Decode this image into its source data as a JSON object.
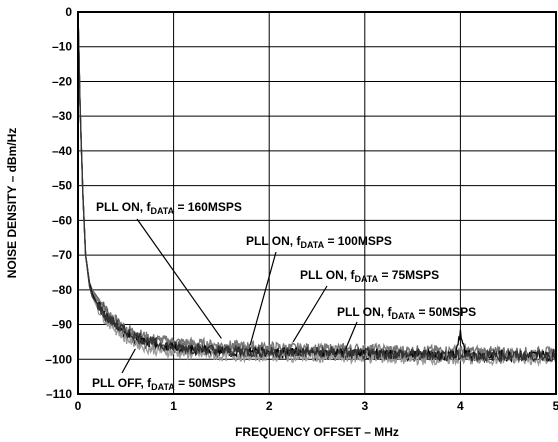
{
  "chart_data": {
    "type": "line",
    "title": "",
    "xlabel": "FREQUENCY OFFSET – MHz",
    "ylabel": "NOISE DENSITY – dBm/Hz",
    "xlim": [
      0,
      5
    ],
    "ylim": [
      -110,
      0
    ],
    "xticks": [
      "0",
      "1",
      "2",
      "3",
      "4",
      "5"
    ],
    "yticks": [
      "0",
      "–10",
      "–20",
      "–30",
      "–40",
      "–50",
      "–60",
      "–70",
      "–80",
      "–90",
      "–100",
      "–110"
    ],
    "grid": true,
    "annotations": [
      {
        "pre": "PLL ON, f",
        "sub": "DATA",
        "post": " = 160MSPS",
        "arrow_to": [
          1.5,
          -94
        ]
      },
      {
        "pre": "PLL ON, f",
        "sub": "DATA",
        "post": " = 100MSPS",
        "arrow_to": [
          1.8,
          -96
        ]
      },
      {
        "pre": "PLL ON, f",
        "sub": "DATA",
        "post": " = 75MSPS",
        "arrow_to": [
          2.25,
          -95
        ]
      },
      {
        "pre": "PLL ON, f",
        "sub": "DATA",
        "post": " = 50MSPS",
        "arrow_to": [
          2.8,
          -97
        ]
      },
      {
        "pre": "PLL OFF, f",
        "sub": "DATA",
        "post": " = 50MSPS",
        "arrow_to": [
          0.6,
          -97
        ]
      }
    ],
    "series": [
      {
        "color": "#555555",
        "x": [
          0,
          0.02,
          0.05,
          0.08,
          0.12,
          0.15,
          0.2,
          0.3,
          0.5,
          0.75,
          1.0,
          1.5,
          2.0,
          2.5,
          3.0,
          3.5,
          4.0,
          4.5,
          5.0
        ],
        "y": [
          0,
          -25,
          -52,
          -70,
          -78,
          -80,
          -82,
          -86,
          -92,
          -95,
          -96,
          -97,
          -97.5,
          -98,
          -98,
          -98.5,
          -98.5,
          -98.5,
          -98.5
        ]
      },
      {
        "color": "#777777",
        "x": [
          0,
          0.02,
          0.05,
          0.08,
          0.12,
          0.15,
          0.2,
          0.3,
          0.5,
          0.75,
          1.0,
          1.5,
          2.0,
          2.5,
          3.0,
          3.5,
          4.0,
          4.5,
          5.0
        ],
        "y": [
          0,
          -25,
          -52,
          -70,
          -78,
          -80,
          -83,
          -87,
          -91,
          -94,
          -95,
          -96,
          -96.5,
          -97,
          -97,
          -97.5,
          -97.5,
          -98,
          -98
        ]
      },
      {
        "color": "#000000",
        "x": [
          0,
          0.02,
          0.05,
          0.08,
          0.12,
          0.15,
          0.2,
          0.3,
          0.5,
          0.75,
          1.0,
          1.5,
          2.0,
          2.5,
          3.0,
          3.5,
          3.95,
          4.0,
          4.05,
          4.5,
          5.0
        ],
        "y": [
          0,
          -25,
          -52,
          -70,
          -78,
          -81,
          -84,
          -88,
          -93,
          -96,
          -97,
          -98,
          -98,
          -98.5,
          -98.5,
          -99,
          -99,
          -92,
          -99,
          -99,
          -99
        ]
      },
      {
        "color": "#999999",
        "x": [
          0,
          0.02,
          0.05,
          0.08,
          0.12,
          0.15,
          0.2,
          0.3,
          0.5,
          0.75,
          1.0,
          1.5,
          2.0,
          2.5,
          3.0,
          3.5,
          4.0,
          4.5,
          5.0
        ],
        "y": [
          0,
          -25,
          -52,
          -70,
          -79,
          -82,
          -85,
          -89,
          -94,
          -97,
          -98,
          -99,
          -99,
          -99.5,
          -99.5,
          -100,
          -100,
          -100,
          -100
        ]
      },
      {
        "color": "#333333",
        "x": [
          0,
          0.02,
          0.05,
          0.08,
          0.12,
          0.15,
          0.2,
          0.3,
          0.5,
          0.75,
          1.0,
          1.5,
          2.0,
          2.5,
          3.0,
          3.5,
          4.0,
          4.5,
          5.0
        ],
        "y": [
          0,
          -25,
          -52,
          -70,
          -79,
          -82,
          -84,
          -88,
          -92,
          -95,
          -96.5,
          -97.5,
          -98,
          -98,
          -98.5,
          -98.5,
          -99,
          -99,
          -99
        ]
      }
    ]
  }
}
